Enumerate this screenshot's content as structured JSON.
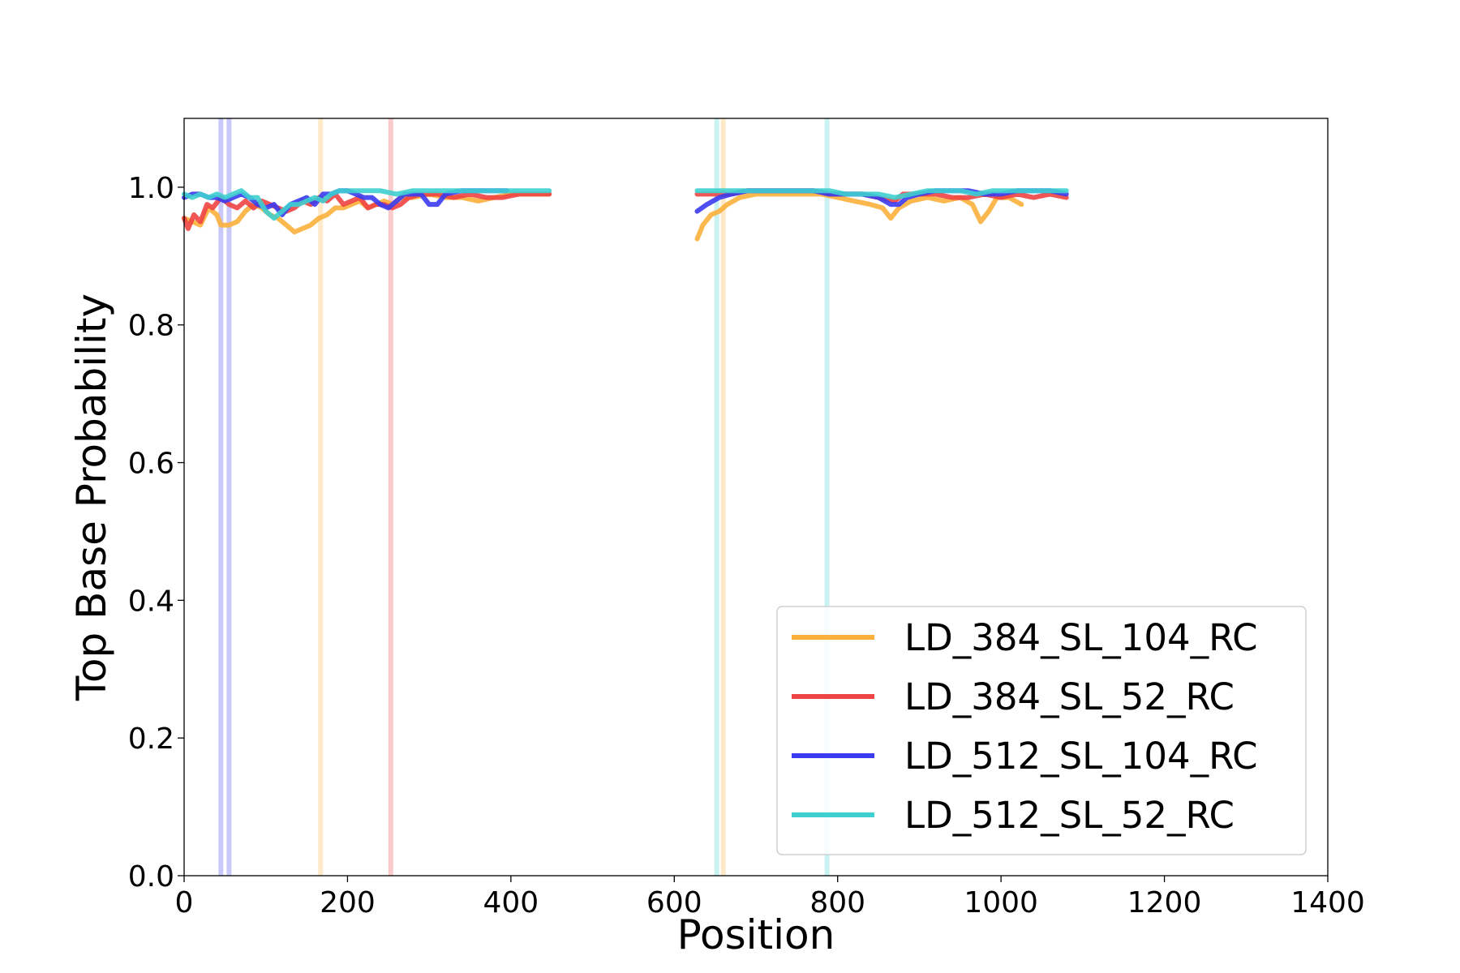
{
  "chart_data": {
    "type": "line",
    "title": "",
    "xlabel": "Position",
    "ylabel": "Top Base Probability",
    "xlim": [
      0,
      1400
    ],
    "ylim": [
      0.0,
      1.1
    ],
    "xticks": [
      "0",
      "200",
      "400",
      "600",
      "800",
      "1000",
      "1200",
      "1400"
    ],
    "yticks": [
      "0.0",
      "0.2",
      "0.4",
      "0.6",
      "0.8",
      "1.0"
    ],
    "xtick_values": [
      0,
      200,
      400,
      600,
      800,
      1000,
      1200,
      1400
    ],
    "ytick_values": [
      0.0,
      0.2,
      0.4,
      0.6,
      0.8,
      1.0
    ],
    "grid": false,
    "legend_position": "lower-right",
    "series": [
      {
        "name": "LD_384_SL_104_RC",
        "color": "#fbb03b",
        "segments": [
          [
            [
              0,
              0.955
            ],
            [
              10,
              0.95
            ],
            [
              20,
              0.945
            ],
            [
              30,
              0.97
            ],
            [
              40,
              0.96
            ],
            [
              45,
              0.945
            ],
            [
              55,
              0.945
            ],
            [
              65,
              0.95
            ],
            [
              75,
              0.965
            ],
            [
              85,
              0.975
            ],
            [
              95,
              0.97
            ],
            [
              105,
              0.96
            ],
            [
              115,
              0.955
            ],
            [
              125,
              0.945
            ],
            [
              135,
              0.935
            ],
            [
              145,
              0.94
            ],
            [
              155,
              0.945
            ],
            [
              165,
              0.955
            ],
            [
              175,
              0.96
            ],
            [
              185,
              0.97
            ],
            [
              195,
              0.97
            ],
            [
              205,
              0.975
            ],
            [
              215,
              0.98
            ],
            [
              225,
              0.97
            ],
            [
              235,
              0.975
            ],
            [
              245,
              0.98
            ],
            [
              255,
              0.975
            ],
            [
              265,
              0.985
            ],
            [
              280,
              0.985
            ],
            [
              300,
              0.99
            ],
            [
              320,
              0.985
            ],
            [
              340,
              0.985
            ],
            [
              360,
              0.98
            ],
            [
              380,
              0.985
            ],
            [
              400,
              0.99
            ],
            [
              420,
              0.99
            ],
            [
              447,
              0.99
            ]
          ],
          [
            [
              628,
              0.925
            ],
            [
              635,
              0.945
            ],
            [
              645,
              0.96
            ],
            [
              655,
              0.965
            ],
            [
              665,
              0.975
            ],
            [
              680,
              0.985
            ],
            [
              700,
              0.99
            ],
            [
              720,
              0.99
            ],
            [
              740,
              0.99
            ],
            [
              760,
              0.99
            ],
            [
              780,
              0.99
            ],
            [
              800,
              0.985
            ],
            [
              820,
              0.98
            ],
            [
              840,
              0.975
            ],
            [
              855,
              0.97
            ],
            [
              865,
              0.955
            ],
            [
              875,
              0.97
            ],
            [
              890,
              0.98
            ],
            [
              910,
              0.985
            ],
            [
              930,
              0.98
            ],
            [
              950,
              0.985
            ],
            [
              965,
              0.975
            ],
            [
              975,
              0.95
            ],
            [
              985,
              0.965
            ],
            [
              995,
              0.985
            ],
            [
              1010,
              0.985
            ],
            [
              1025,
              0.975
            ]
          ]
        ]
      },
      {
        "name": "LD_384_SL_52_RC",
        "color": "#ef4444",
        "segments": [
          [
            [
              0,
              0.955
            ],
            [
              5,
              0.94
            ],
            [
              12,
              0.96
            ],
            [
              20,
              0.95
            ],
            [
              28,
              0.975
            ],
            [
              35,
              0.97
            ],
            [
              45,
              0.985
            ],
            [
              55,
              0.975
            ],
            [
              65,
              0.97
            ],
            [
              75,
              0.98
            ],
            [
              85,
              0.97
            ],
            [
              95,
              0.98
            ],
            [
              105,
              0.975
            ],
            [
              115,
              0.97
            ],
            [
              125,
              0.965
            ],
            [
              135,
              0.97
            ],
            [
              145,
              0.98
            ],
            [
              155,
              0.975
            ],
            [
              165,
              0.985
            ],
            [
              175,
              0.98
            ],
            [
              185,
              0.99
            ],
            [
              195,
              0.975
            ],
            [
              205,
              0.98
            ],
            [
              215,
              0.985
            ],
            [
              225,
              0.97
            ],
            [
              235,
              0.975
            ],
            [
              245,
              0.975
            ],
            [
              255,
              0.97
            ],
            [
              265,
              0.975
            ],
            [
              275,
              0.985
            ],
            [
              290,
              0.99
            ],
            [
              310,
              0.99
            ],
            [
              330,
              0.985
            ],
            [
              350,
              0.99
            ],
            [
              370,
              0.985
            ],
            [
              390,
              0.985
            ],
            [
              410,
              0.99
            ],
            [
              430,
              0.99
            ],
            [
              447,
              0.99
            ]
          ],
          [
            [
              628,
              0.99
            ],
            [
              650,
              0.99
            ],
            [
              670,
              0.99
            ],
            [
              690,
              0.995
            ],
            [
              710,
              0.995
            ],
            [
              730,
              0.995
            ],
            [
              750,
              0.995
            ],
            [
              770,
              0.995
            ],
            [
              790,
              0.99
            ],
            [
              810,
              0.99
            ],
            [
              830,
              0.99
            ],
            [
              850,
              0.985
            ],
            [
              870,
              0.98
            ],
            [
              880,
              0.99
            ],
            [
              900,
              0.99
            ],
            [
              920,
              0.99
            ],
            [
              940,
              0.985
            ],
            [
              960,
              0.985
            ],
            [
              980,
              0.99
            ],
            [
              1000,
              0.985
            ],
            [
              1020,
              0.99
            ],
            [
              1040,
              0.985
            ],
            [
              1060,
              0.99
            ],
            [
              1080,
              0.985
            ]
          ]
        ]
      },
      {
        "name": "LD_512_SL_104_RC",
        "color": "#3b3bf0",
        "segments": [
          [
            [
              0,
              0.985
            ],
            [
              10,
              0.99
            ],
            [
              20,
              0.99
            ],
            [
              30,
              0.985
            ],
            [
              40,
              0.985
            ],
            [
              50,
              0.98
            ],
            [
              60,
              0.985
            ],
            [
              70,
              0.99
            ],
            [
              80,
              0.985
            ],
            [
              90,
              0.975
            ],
            [
              100,
              0.97
            ],
            [
              110,
              0.975
            ],
            [
              120,
              0.96
            ],
            [
              130,
              0.975
            ],
            [
              140,
              0.98
            ],
            [
              150,
              0.985
            ],
            [
              160,
              0.975
            ],
            [
              170,
              0.99
            ],
            [
              180,
              0.99
            ],
            [
              190,
              0.995
            ],
            [
              200,
              0.995
            ],
            [
              210,
              0.99
            ],
            [
              220,
              0.985
            ],
            [
              230,
              0.985
            ],
            [
              240,
              0.975
            ],
            [
              250,
              0.97
            ],
            [
              260,
              0.98
            ],
            [
              270,
              0.99
            ],
            [
              280,
              0.99
            ],
            [
              290,
              0.99
            ],
            [
              300,
              0.975
            ],
            [
              310,
              0.975
            ],
            [
              320,
              0.99
            ],
            [
              340,
              0.995
            ],
            [
              360,
              0.995
            ],
            [
              380,
              0.995
            ],
            [
              395,
              0.995
            ]
          ],
          [
            [
              628,
              0.965
            ],
            [
              640,
              0.975
            ],
            [
              655,
              0.985
            ],
            [
              670,
              0.99
            ],
            [
              690,
              0.995
            ],
            [
              710,
              0.995
            ],
            [
              730,
              0.995
            ],
            [
              750,
              0.995
            ],
            [
              770,
              0.995
            ],
            [
              790,
              0.99
            ],
            [
              810,
              0.99
            ],
            [
              830,
              0.99
            ],
            [
              850,
              0.985
            ],
            [
              865,
              0.975
            ],
            [
              875,
              0.975
            ],
            [
              885,
              0.985
            ],
            [
              900,
              0.99
            ],
            [
              920,
              0.995
            ],
            [
              940,
              0.995
            ],
            [
              960,
              0.995
            ],
            [
              980,
              0.99
            ],
            [
              1000,
              0.99
            ],
            [
              1020,
              0.995
            ],
            [
              1040,
              0.995
            ],
            [
              1060,
              0.995
            ],
            [
              1080,
              0.99
            ]
          ]
        ]
      },
      {
        "name": "LD_512_SL_52_RC",
        "color": "#3ecfcf",
        "segments": [
          [
            [
              0,
              0.99
            ],
            [
              10,
              0.985
            ],
            [
              20,
              0.99
            ],
            [
              30,
              0.985
            ],
            [
              40,
              0.99
            ],
            [
              50,
              0.985
            ],
            [
              60,
              0.99
            ],
            [
              70,
              0.995
            ],
            [
              80,
              0.985
            ],
            [
              90,
              0.985
            ],
            [
              100,
              0.965
            ],
            [
              110,
              0.955
            ],
            [
              120,
              0.965
            ],
            [
              130,
              0.975
            ],
            [
              140,
              0.975
            ],
            [
              150,
              0.98
            ],
            [
              160,
              0.985
            ],
            [
              170,
              0.98
            ],
            [
              180,
              0.99
            ],
            [
              190,
              0.995
            ],
            [
              200,
              0.995
            ],
            [
              220,
              0.995
            ],
            [
              240,
              0.995
            ],
            [
              260,
              0.99
            ],
            [
              280,
              0.995
            ],
            [
              300,
              0.995
            ],
            [
              320,
              0.995
            ],
            [
              340,
              0.995
            ],
            [
              360,
              0.995
            ],
            [
              380,
              0.995
            ],
            [
              400,
              0.995
            ],
            [
              420,
              0.995
            ],
            [
              447,
              0.995
            ]
          ],
          [
            [
              628,
              0.995
            ],
            [
              650,
              0.995
            ],
            [
              670,
              0.995
            ],
            [
              690,
              0.995
            ],
            [
              710,
              0.995
            ],
            [
              730,
              0.995
            ],
            [
              750,
              0.995
            ],
            [
              770,
              0.995
            ],
            [
              790,
              0.995
            ],
            [
              810,
              0.99
            ],
            [
              830,
              0.99
            ],
            [
              850,
              0.99
            ],
            [
              870,
              0.985
            ],
            [
              890,
              0.99
            ],
            [
              910,
              0.995
            ],
            [
              930,
              0.995
            ],
            [
              950,
              0.995
            ],
            [
              970,
              0.99
            ],
            [
              990,
              0.995
            ],
            [
              1010,
              0.995
            ],
            [
              1030,
              0.995
            ],
            [
              1050,
              0.995
            ],
            [
              1070,
              0.995
            ],
            [
              1080,
              0.995
            ]
          ]
        ]
      }
    ],
    "vertical_markers": [
      {
        "x": 45,
        "color": "#3b3bf0"
      },
      {
        "x": 55,
        "color": "#3b3bf0"
      },
      {
        "x": 167,
        "color": "#fbb03b"
      },
      {
        "x": 253,
        "color": "#ef4444"
      },
      {
        "x": 652,
        "color": "#3ecfcf"
      },
      {
        "x": 660,
        "color": "#fbb03b"
      },
      {
        "x": 787,
        "color": "#3ecfcf"
      }
    ]
  }
}
